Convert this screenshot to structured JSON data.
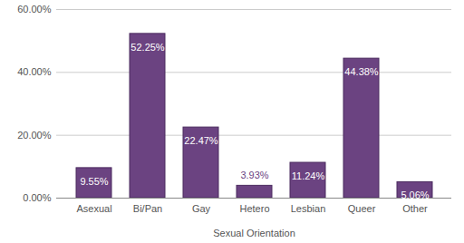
{
  "chart_data": {
    "type": "bar",
    "x_label": "Sexual Orientation",
    "categories": [
      "Asexual",
      "Bi/Pan",
      "Gay",
      "Hetero",
      "Lesbian",
      "Queer",
      "Other"
    ],
    "values": [
      9.55,
      52.25,
      22.47,
      3.93,
      11.24,
      44.38,
      5.06
    ],
    "value_labels": [
      "9.55%",
      "52.25%",
      "22.47%",
      "3.93%",
      "11.24%",
      "44.38%",
      "5.06%"
    ],
    "color": "#6b4381",
    "ylim": [
      0,
      60
    ],
    "yticks": [
      {
        "value": 0,
        "label": "0.00%"
      },
      {
        "value": 20,
        "label": "20.00%"
      },
      {
        "value": 40,
        "label": "40.00%"
      },
      {
        "value": 60,
        "label": "60.00%"
      }
    ],
    "grid": true,
    "data_labels": true
  }
}
